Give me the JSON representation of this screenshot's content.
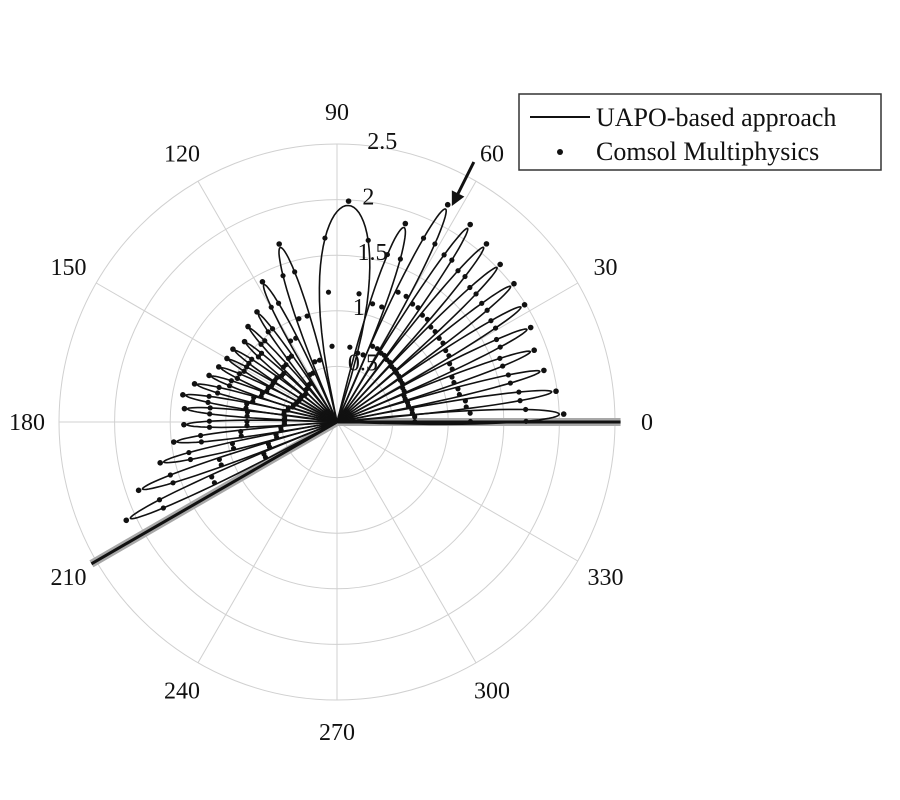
{
  "chart_data": {
    "type": "polar-line",
    "title": "",
    "radial_axis": {
      "range": [
        0,
        2.5
      ],
      "ticks": [
        "0.5",
        "1",
        "1.5",
        "2",
        "2.5"
      ],
      "label_angle_deg": 85
    },
    "angular_axis": {
      "ticks": [
        "0",
        "30",
        "60",
        "90",
        "120",
        "150",
        "180",
        "210",
        "240",
        "270",
        "300",
        "330"
      ],
      "unit": "deg"
    },
    "grid": true,
    "legend": {
      "placement": "top-right",
      "entries": [
        "UAPO-based approach",
        "Comsol Multiphysics"
      ]
    },
    "wedge": {
      "angles_deg": [
        0,
        210
      ],
      "length": 2.55
    },
    "annotation": {
      "type": "arrow",
      "points_to": {
        "theta_deg": 62,
        "r": 2.2
      }
    },
    "series": [
      {
        "name": "UAPO-based approach",
        "style": "line",
        "lobes": [
          {
            "theta_deg": 2,
            "r": 2.0,
            "width_deg": 4
          },
          {
            "theta_deg": 8,
            "r": 1.95,
            "width_deg": 3
          },
          {
            "theta_deg": 14,
            "r": 1.88,
            "width_deg": 3
          },
          {
            "theta_deg": 20,
            "r": 1.85,
            "width_deg": 3
          },
          {
            "theta_deg": 26,
            "r": 1.9,
            "width_deg": 3
          },
          {
            "theta_deg": 32,
            "r": 1.95,
            "width_deg": 3
          },
          {
            "theta_deg": 38,
            "r": 1.98,
            "width_deg": 3
          },
          {
            "theta_deg": 44,
            "r": 2.0,
            "width_deg": 3
          },
          {
            "theta_deg": 50,
            "r": 2.05,
            "width_deg": 3
          },
          {
            "theta_deg": 56,
            "r": 2.1,
            "width_deg": 3
          },
          {
            "theta_deg": 63,
            "r": 2.15,
            "width_deg": 4
          },
          {
            "theta_deg": 71,
            "r": 1.85,
            "width_deg": 5
          },
          {
            "theta_deg": 87,
            "r": 1.95,
            "width_deg": 15
          },
          {
            "theta_deg": 108,
            "r": 1.65,
            "width_deg": 5
          },
          {
            "theta_deg": 118,
            "r": 1.4,
            "width_deg": 4
          },
          {
            "theta_deg": 126,
            "r": 1.2,
            "width_deg": 3
          },
          {
            "theta_deg": 133,
            "r": 1.15,
            "width_deg": 3
          },
          {
            "theta_deg": 139,
            "r": 1.08,
            "width_deg": 3
          },
          {
            "theta_deg": 145,
            "r": 1.12,
            "width_deg": 3
          },
          {
            "theta_deg": 150,
            "r": 1.12,
            "width_deg": 3
          },
          {
            "theta_deg": 155,
            "r": 1.15,
            "width_deg": 3
          },
          {
            "theta_deg": 160,
            "r": 1.2,
            "width_deg": 3
          },
          {
            "theta_deg": 165,
            "r": 1.3,
            "width_deg": 3
          },
          {
            "theta_deg": 170,
            "r": 1.38,
            "width_deg": 3
          },
          {
            "theta_deg": 175,
            "r": 1.35,
            "width_deg": 3
          },
          {
            "theta_deg": 181,
            "r": 1.35,
            "width_deg": 3
          },
          {
            "theta_deg": 187,
            "r": 1.45,
            "width_deg": 3
          },
          {
            "theta_deg": 193,
            "r": 1.6,
            "width_deg": 3
          },
          {
            "theta_deg": 199,
            "r": 1.85,
            "width_deg": 3
          },
          {
            "theta_deg": 205,
            "r": 2.05,
            "width_deg": 3
          }
        ]
      },
      {
        "name": "Comsol Multiphysics",
        "style": "markers",
        "marker": "dot",
        "sampling": "5 markers per lobe outline plus lobe tip"
      }
    ]
  }
}
